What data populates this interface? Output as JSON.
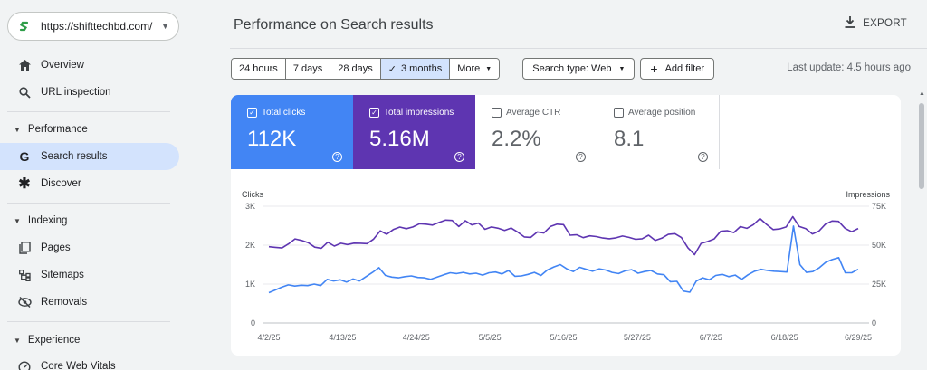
{
  "sidebar": {
    "property_url": "https://shifttechbd.com/",
    "items": {
      "overview": "Overview",
      "url_inspection": "URL inspection",
      "search_results": "Search results",
      "discover": "Discover",
      "pages": "Pages",
      "sitemaps": "Sitemaps",
      "removals": "Removals",
      "core_web_vitals": "Core Web Vitals"
    },
    "sections": {
      "performance": "Performance",
      "indexing": "Indexing",
      "experience": "Experience"
    }
  },
  "header": {
    "title": "Performance on Search results",
    "export_label": "EXPORT"
  },
  "toolbar": {
    "ranges": [
      "24 hours",
      "7 days",
      "28 days",
      "3 months"
    ],
    "selected_range": "3 months",
    "more_label": "More",
    "search_type": "Search type: Web",
    "add_filter": "Add filter",
    "last_update": "Last update: 4.5 hours ago"
  },
  "metrics": {
    "clicks": {
      "label": "Total clicks",
      "value": "112K",
      "checked": true
    },
    "impressions": {
      "label": "Total impressions",
      "value": "5.16M",
      "checked": true
    },
    "ctr": {
      "label": "Average CTR",
      "value": "2.2%",
      "checked": false
    },
    "position": {
      "label": "Average position",
      "value": "8.1",
      "checked": false
    }
  },
  "colors": {
    "clicks": "#4285f4",
    "impressions": "#5e35b1",
    "selected_range_bg": "#d3e3fd"
  },
  "chart_data": {
    "type": "line",
    "left_axis_label": "Clicks",
    "right_axis_label": "Impressions",
    "left_ticks": [
      "0",
      "1K",
      "2K",
      "3K"
    ],
    "right_ticks": [
      "0",
      "25K",
      "50K",
      "75K"
    ],
    "left_ylim": [
      0,
      3000
    ],
    "right_ylim": [
      0,
      75000
    ],
    "x_tick_labels": [
      "4/2/25",
      "4/13/25",
      "4/24/25",
      "5/5/25",
      "5/16/25",
      "5/27/25",
      "6/7/25",
      "6/18/25",
      "6/29/25"
    ],
    "grid": true,
    "series": [
      {
        "name": "Clicks",
        "axis": "left",
        "values": [
          780,
          850,
          920,
          980,
          950,
          970,
          960,
          1000,
          960,
          1120,
          1080,
          1110,
          1050,
          1130,
          1080,
          1190,
          1300,
          1420,
          1220,
          1180,
          1160,
          1190,
          1210,
          1170,
          1160,
          1120,
          1180,
          1240,
          1290,
          1270,
          1300,
          1260,
          1280,
          1230,
          1290,
          1310,
          1260,
          1350,
          1200,
          1210,
          1250,
          1300,
          1220,
          1360,
          1440,
          1500,
          1390,
          1320,
          1430,
          1380,
          1330,
          1390,
          1360,
          1300,
          1270,
          1340,
          1370,
          1280,
          1320,
          1350,
          1260,
          1240,
          1060,
          1070,
          820,
          790,
          1080,
          1160,
          1110,
          1220,
          1250,
          1190,
          1230,
          1120,
          1240,
          1330,
          1380,
          1350,
          1330,
          1320,
          1310,
          2490,
          1500,
          1300,
          1320,
          1420,
          1560,
          1630,
          1680,
          1290,
          1290,
          1380
        ]
      },
      {
        "name": "Impressions",
        "axis": "right",
        "values": [
          49000,
          48600,
          48200,
          50800,
          54000,
          53000,
          51600,
          48700,
          48000,
          51900,
          49400,
          51200,
          50400,
          51300,
          51200,
          51000,
          53900,
          59200,
          57000,
          60000,
          61600,
          60600,
          61700,
          63800,
          63500,
          62900,
          64600,
          66100,
          65900,
          62000,
          65700,
          63000,
          64200,
          60200,
          61700,
          60900,
          59500,
          61000,
          58400,
          55300,
          55000,
          58500,
          57800,
          62000,
          63500,
          63200,
          56400,
          56700,
          54800,
          56000,
          55500,
          54600,
          54100,
          54700,
          55900,
          55000,
          53800,
          54100,
          56400,
          53100,
          54500,
          56900,
          57400,
          54900,
          48300,
          43900,
          51100,
          52300,
          54000,
          58900,
          59300,
          58100,
          61900,
          60800,
          63200,
          67100,
          63400,
          60000,
          60400,
          61700,
          68300,
          62000,
          60600,
          57200,
          59000,
          63500,
          65500,
          65300,
          60800,
          58600,
          60700
        ]
      }
    ]
  }
}
